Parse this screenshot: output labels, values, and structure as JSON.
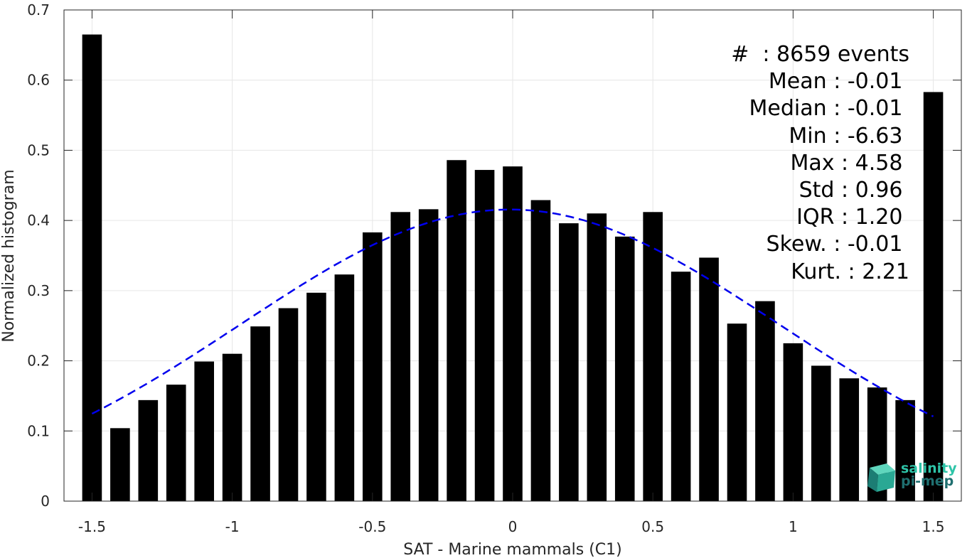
{
  "chart_data": {
    "type": "bar",
    "xlabel": "SAT - Marine mammals (C1)",
    "ylabel": "Normalized histogram",
    "xlim": [
      -1.6,
      1.6
    ],
    "ylim": [
      0,
      0.7
    ],
    "grid": true,
    "xticks": [
      -1.5,
      -1,
      -0.5,
      0,
      0.5,
      1,
      1.5
    ],
    "xtick_labels": [
      "-1.5",
      "-1",
      "-0.5",
      "0",
      "0.5",
      "1",
      "1.5"
    ],
    "yticks": [
      0,
      0.1,
      0.2,
      0.3,
      0.4,
      0.5,
      0.6,
      0.7
    ],
    "ytick_labels": [
      "0",
      "0.1",
      "0.2",
      "0.3",
      "0.4",
      "0.5",
      "0.6",
      "0.7"
    ],
    "bar_width": 0.07,
    "bars": {
      "x": [
        -1.5,
        -1.4,
        -1.3,
        -1.2,
        -1.1,
        -1.0,
        -0.9,
        -0.8,
        -0.7,
        -0.6,
        -0.5,
        -0.4,
        -0.3,
        -0.2,
        -0.1,
        0.0,
        0.1,
        0.2,
        0.3,
        0.4,
        0.5,
        0.6,
        0.7,
        0.8,
        0.9,
        1.0,
        1.1,
        1.2,
        1.3,
        1.4,
        1.5
      ],
      "values": [
        0.665,
        0.104,
        0.144,
        0.166,
        0.199,
        0.21,
        0.249,
        0.275,
        0.297,
        0.323,
        0.383,
        0.412,
        0.416,
        0.486,
        0.472,
        0.477,
        0.429,
        0.396,
        0.41,
        0.377,
        0.412,
        0.327,
        0.347,
        0.253,
        0.285,
        0.225,
        0.193,
        0.175,
        0.162,
        0.144,
        0.583
      ],
      "color": "#000000"
    },
    "fit_curve": {
      "style": "dashed",
      "color": "#0000ee",
      "mean": -0.01,
      "std": 0.96
    }
  },
  "stats": {
    "lines": [
      "#  : 8659 events",
      "Mean : -0.01 ",
      "Median : -0.01 ",
      "Min : -6.63 ",
      "Max : 4.58 ",
      "Std : 0.96 ",
      "IQR : 1.20 ",
      "Skew. : -0.01 ",
      "Kurt. : 2.21"
    ]
  },
  "logo": {
    "line1": "salinity",
    "line2": "pi-mep",
    "colors": [
      "#2ec4a8",
      "#1f6f70"
    ]
  }
}
